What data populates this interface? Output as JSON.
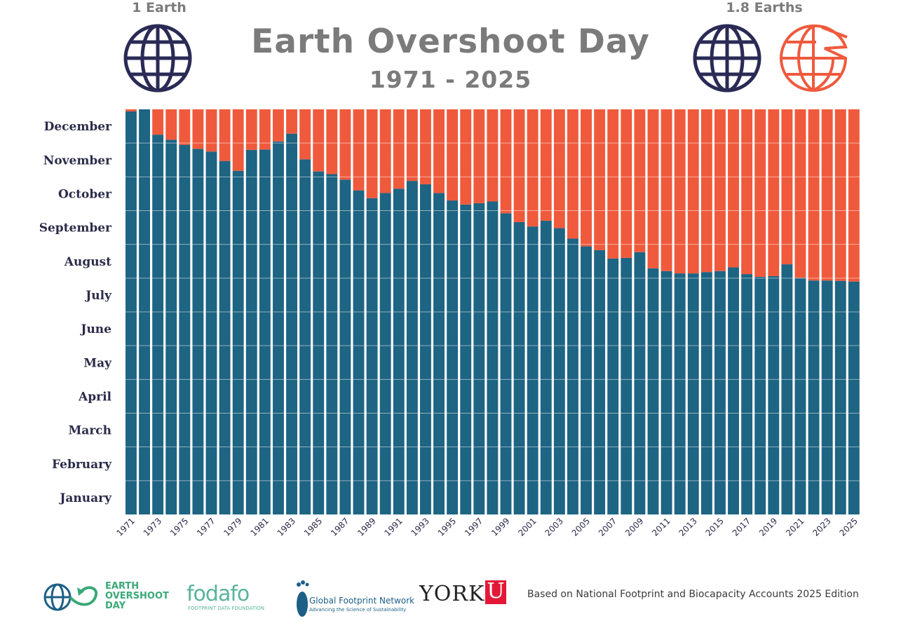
{
  "header": {
    "title": "Earth Overshoot Day",
    "subtitle": "1971 - 2025",
    "left_label": "1 Earth",
    "right_label": "1.8 Earths"
  },
  "colors": {
    "used_resources": "#1e6483",
    "overshoot": "#ef5a3d",
    "globe": "#2a2a55",
    "globe_partial": "#ef5a3d",
    "title": "#7b7b7b",
    "axis_text": "#2b2b4a"
  },
  "icons": [
    "globe-icon",
    "globe-icon",
    "globe-icon",
    "partial-globe-icon"
  ],
  "chart_data": {
    "type": "bar",
    "stacked": true,
    "title": "Earth Overshoot Day",
    "subtitle": "1971 - 2025",
    "categories": [
      "1971",
      "1972",
      "1973",
      "1974",
      "1975",
      "1976",
      "1977",
      "1978",
      "1979",
      "1980",
      "1981",
      "1982",
      "1983",
      "1984",
      "1985",
      "1986",
      "1987",
      "1988",
      "1989",
      "1990",
      "1991",
      "1992",
      "1993",
      "1994",
      "1995",
      "1996",
      "1997",
      "1998",
      "1999",
      "2000",
      "2001",
      "2002",
      "2003",
      "2004",
      "2005",
      "2006",
      "2007",
      "2008",
      "2009",
      "2010",
      "2011",
      "2012",
      "2013",
      "2014",
      "2015",
      "2016",
      "2017",
      "2018",
      "2019",
      "2020",
      "2021",
      "2022",
      "2023",
      "2024",
      "2025"
    ],
    "x_tick_labels": [
      "1971",
      "1973",
      "1975",
      "1977",
      "1979",
      "1981",
      "1983",
      "1985",
      "1987",
      "1989",
      "1991",
      "1993",
      "1995",
      "1997",
      "1999",
      "2001",
      "2003",
      "2005",
      "2007",
      "2009",
      "2011",
      "2013",
      "2015",
      "2017",
      "2019",
      "2021",
      "2023",
      "2025"
    ],
    "y_tick_labels": [
      "January",
      "February",
      "March",
      "April",
      "May",
      "June",
      "July",
      "August",
      "September",
      "October",
      "November",
      "December"
    ],
    "ylim": [
      0,
      12
    ],
    "y_unit_note": "months",
    "series": [
      {
        "values": [
          11.94,
          12.0,
          11.25,
          11.1,
          10.95,
          10.83,
          10.75,
          10.47,
          10.18,
          10.8,
          10.81,
          11.05,
          11.28,
          10.52,
          10.16,
          10.08,
          9.92,
          9.6,
          9.37,
          9.52,
          9.65,
          9.88,
          9.78,
          9.52,
          9.3,
          9.18,
          9.22,
          9.27,
          8.92,
          8.66,
          8.53,
          8.7,
          8.48,
          8.17,
          7.94,
          7.83,
          7.58,
          7.6,
          7.77,
          7.29,
          7.21,
          7.14,
          7.14,
          7.18,
          7.21,
          7.32,
          7.12,
          7.04,
          7.06,
          7.41,
          7.01,
          6.93,
          6.93,
          6.92,
          6.9
        ],
        "color": "#1e6483"
      },
      {
        "values": [
          0.06,
          0.0,
          0.75,
          0.9,
          1.05,
          1.17,
          1.25,
          1.53,
          1.82,
          1.2,
          1.19,
          0.95,
          0.72,
          1.48,
          1.84,
          1.92,
          2.08,
          2.4,
          2.63,
          2.48,
          2.35,
          2.12,
          2.22,
          2.48,
          2.7,
          2.82,
          2.78,
          2.73,
          3.08,
          3.34,
          3.47,
          3.3,
          3.52,
          3.83,
          4.06,
          4.17,
          4.42,
          4.4,
          4.23,
          4.71,
          4.79,
          4.86,
          4.86,
          4.82,
          4.79,
          4.68,
          4.88,
          4.96,
          4.94,
          4.59,
          4.99,
          5.07,
          5.07,
          5.08,
          5.1
        ],
        "color": "#ef5a3d"
      }
    ],
    "grid": true,
    "legend": "none"
  },
  "footer": {
    "eod_logo_text": "EARTH\nOVERSHOOT\nDAY",
    "fodafo_text": "fodafo",
    "fodafo_sub": "FOOTPRINT DATA FOUNDATION",
    "gfn_text": "Global Footprint Network",
    "gfn_sub": "Advancing the Science of Sustainability",
    "york_text": "YORK",
    "york_u": "U",
    "source": "Based on National Footprint and Biocapacity Accounts 2025 Edition"
  }
}
